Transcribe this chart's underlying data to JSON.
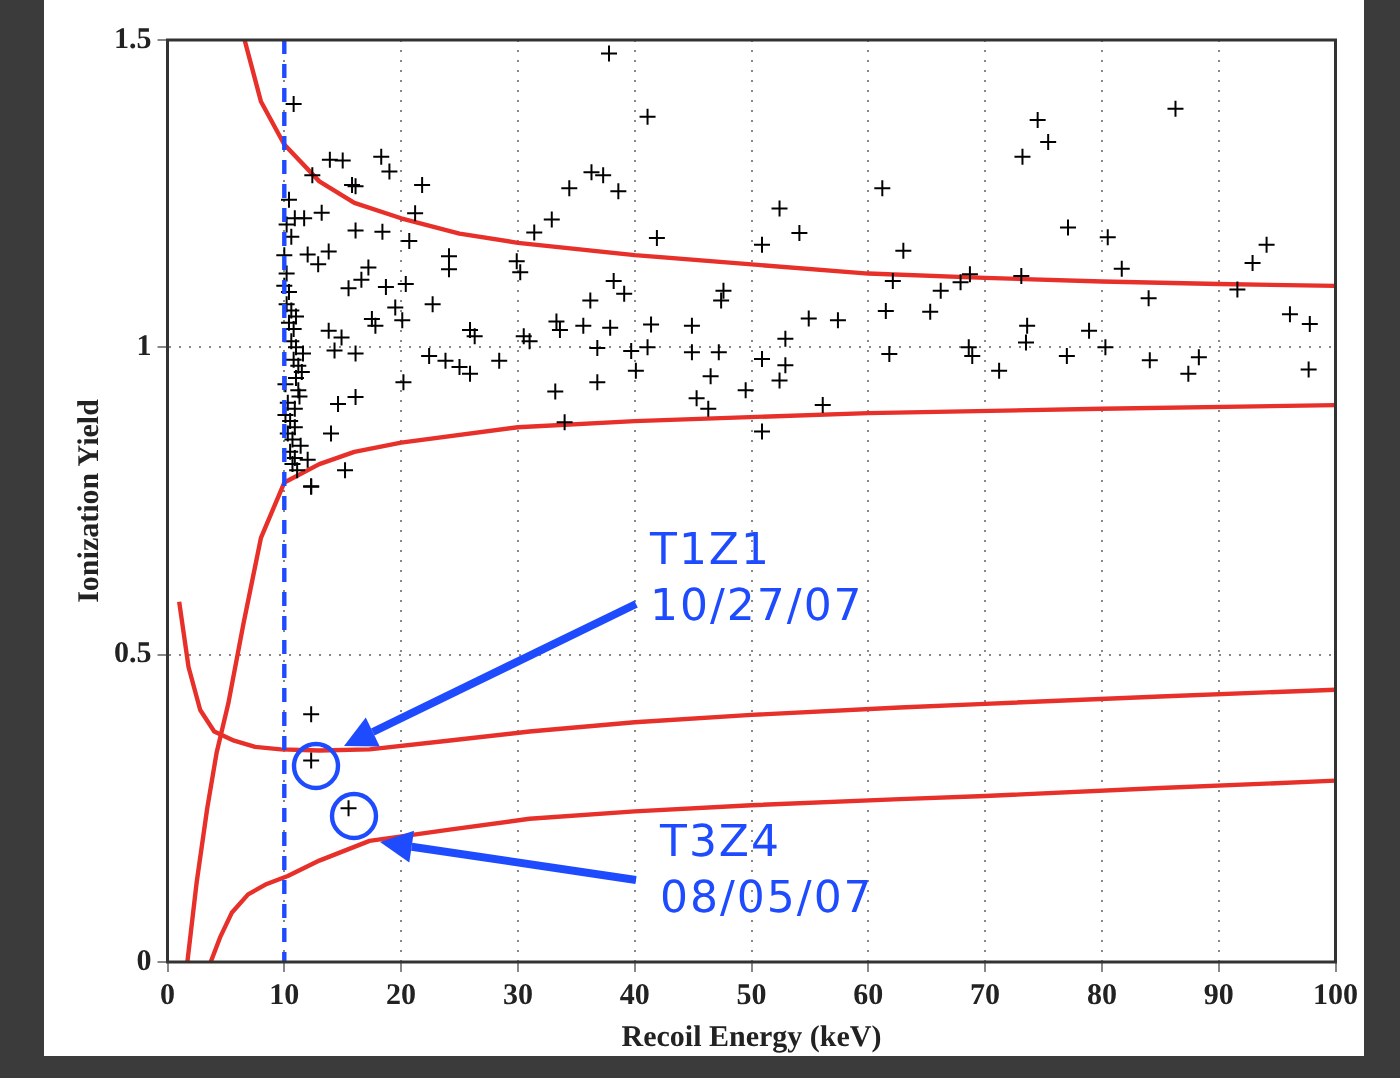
{
  "chart_data": {
    "type": "scatter",
    "xlabel": "Recoil Energy (keV)",
    "ylabel": "Ionization Yield",
    "xlim": [
      0,
      100
    ],
    "ylim": [
      0,
      1.5
    ],
    "xticks": [
      0,
      10,
      20,
      30,
      40,
      50,
      60,
      70,
      80,
      90,
      100
    ],
    "yticks": [
      0,
      0.5,
      1,
      1.5
    ],
    "grid": true,
    "legend": false,
    "ref_lines": [
      {
        "axis": "x",
        "value": 10,
        "color": "#1f4bff",
        "line_style": "dashed"
      }
    ],
    "annotations": [
      "T1Z1\n10/27/07",
      "T3Z4\n08/05/07"
    ],
    "series": [
      {
        "marker": "cross",
        "color": "#000000",
        "x": [
          37.8,
          10.8,
          41.1,
          13.9,
          15.0,
          18.3,
          19.0,
          12.4,
          15.8,
          16.1,
          21.8,
          34.4,
          36.3,
          37.3,
          38.6,
          21.2,
          13.2,
          32.9,
          31.4,
          10.9,
          11.7,
          16.1,
          18.4,
          20.7,
          41.9,
          50.9,
          24.1,
          24.1,
          29.9,
          30.2,
          17.2,
          16.6,
          15.5,
          12.0,
          13.8,
          12.9,
          18.7,
          20.4,
          38.2,
          39.1,
          36.2,
          47.6,
          47.4,
          22.7,
          19.5,
          20.1,
          33.3,
          33.6,
          35.6,
          37.9,
          41.4,
          44.9,
          25.9,
          26.3,
          17.8,
          17.5,
          30.5,
          31.0,
          13.8,
          14.9,
          14.3,
          16.1,
          22.4,
          23.8,
          25.0,
          25.9,
          28.4,
          36.8,
          39.7,
          40.1,
          41.1,
          44.9,
          47.2,
          50.9,
          46.5,
          36.8,
          33.2,
          20.2,
          16.1,
          14.6,
          45.3,
          46.3,
          49.5,
          34.0,
          50.9,
          14.0,
          15.2,
          12.3,
          12.0,
          74.5,
          75.4,
          73.2,
          86.3,
          61.2,
          52.4,
          54.1,
          63.0,
          62.1,
          61.5,
          77.1,
          80.5,
          81.7,
          84.0,
          94.1,
          92.9,
          91.6,
          66.2,
          65.3,
          67.9,
          68.7,
          73.1,
          96.1,
          97.8,
          97.7,
          54.9,
          57.4,
          52.9,
          52.9,
          52.4,
          61.8,
          68.6,
          68.9,
          71.2,
          73.6,
          73.5,
          77.0,
          78.9,
          80.3,
          84.1,
          87.4,
          88.3,
          56.1,
          12.3,
          12.3,
          15.5,
          12.3,
          10.0,
          10.2,
          10.4,
          10.6,
          10.8,
          11.0,
          11.2,
          10.1,
          10.3,
          10.5,
          10.7,
          10.9,
          11.1,
          11.4,
          10.0,
          10.2,
          10.4,
          10.6,
          10.8,
          11.0,
          11.3,
          10.1,
          10.3,
          10.5,
          10.7,
          10.9,
          11.2,
          11.6,
          10.2,
          10.6,
          11.0,
          11.5,
          10.4,
          10.9
        ],
        "values": [
          1.478,
          1.396,
          1.375,
          1.305,
          1.304,
          1.31,
          1.286,
          1.28,
          1.264,
          1.262,
          1.264,
          1.259,
          1.285,
          1.28,
          1.254,
          1.218,
          1.219,
          1.208,
          1.187,
          1.21,
          1.21,
          1.19,
          1.188,
          1.173,
          1.178,
          1.167,
          1.148,
          1.127,
          1.14,
          1.122,
          1.13,
          1.11,
          1.096,
          1.151,
          1.156,
          1.135,
          1.098,
          1.103,
          1.108,
          1.087,
          1.076,
          1.092,
          1.076,
          1.07,
          1.065,
          1.044,
          1.042,
          1.028,
          1.035,
          1.032,
          1.037,
          1.035,
          1.028,
          1.018,
          1.035,
          1.046,
          1.018,
          1.01,
          1.027,
          1.016,
          0.995,
          0.99,
          0.986,
          0.978,
          0.968,
          0.957,
          0.978,
          0.999,
          0.994,
          0.962,
          1.0,
          0.992,
          0.992,
          0.981,
          0.953,
          0.943,
          0.928,
          0.943,
          0.919,
          0.908,
          0.917,
          0.9,
          0.93,
          0.878,
          0.863,
          0.86,
          0.8,
          0.774,
          0.817,
          1.37,
          1.334,
          1.31,
          1.388,
          1.259,
          1.226,
          1.186,
          1.157,
          1.108,
          1.059,
          1.195,
          1.179,
          1.128,
          1.08,
          1.167,
          1.137,
          1.094,
          1.092,
          1.058,
          1.106,
          1.119,
          1.116,
          1.054,
          1.038,
          0.964,
          1.047,
          1.044,
          1.014,
          0.971,
          0.946,
          0.989,
          1.0,
          0.986,
          0.962,
          1.035,
          1.008,
          0.986,
          1.027,
          1.0,
          0.979,
          0.957,
          0.984,
          0.906,
          0.403,
          0.328,
          0.25,
          0.773,
          1.15,
          1.12,
          1.09,
          1.06,
          1.03,
          1.0,
          0.97,
          0.94,
          0.91,
          0.88,
          0.85,
          0.82,
          0.8,
          0.84,
          1.1,
          1.07,
          1.04,
          1.01,
          0.98,
          0.95,
          0.92,
          0.89,
          0.86,
          0.83,
          0.81,
          0.87,
          0.93,
          0.99,
          1.2,
          1.18,
          1.05,
          0.96,
          1.24,
          0.9
        ]
      },
      {
        "type": "line",
        "marker": "none",
        "color": "#e8302a",
        "x": [
          6.6,
          8,
          10,
          13,
          16,
          20,
          25,
          30,
          40,
          50,
          60,
          70,
          80,
          90,
          100
        ],
        "values": [
          1.5,
          1.4,
          1.33,
          1.27,
          1.235,
          1.21,
          1.185,
          1.17,
          1.15,
          1.135,
          1.12,
          1.113,
          1.107,
          1.103,
          1.1
        ]
      },
      {
        "type": "line",
        "marker": "none",
        "color": "#e8302a",
        "x": [
          1.7,
          2.5,
          3.4,
          4.2,
          5.2,
          6.5,
          8,
          10,
          13,
          16,
          20,
          30,
          40,
          60,
          80,
          100
        ],
        "values": [
          0,
          0.13,
          0.25,
          0.34,
          0.42,
          0.55,
          0.69,
          0.78,
          0.81,
          0.83,
          0.845,
          0.87,
          0.88,
          0.893,
          0.9,
          0.906
        ]
      },
      {
        "type": "line",
        "marker": "none",
        "color": "#e8302a",
        "x": [
          1.0,
          1.8,
          2.8,
          4,
          5.7,
          7.5,
          9.7,
          13,
          17.3,
          24,
          31,
          40,
          50,
          62.7,
          70,
          85,
          100
        ],
        "values": [
          0.586,
          0.48,
          0.41,
          0.375,
          0.36,
          0.35,
          0.346,
          0.344,
          0.346,
          0.36,
          0.375,
          0.39,
          0.402,
          0.414,
          0.42,
          0.432,
          0.443
        ]
      },
      {
        "type": "line",
        "marker": "none",
        "color": "#e8302a",
        "x": [
          3.7,
          4.5,
          5.5,
          6.9,
          8.5,
          10.3,
          13,
          17.3,
          24,
          31,
          40,
          50,
          62.7,
          70,
          85,
          100
        ],
        "values": [
          0,
          0.04,
          0.08,
          0.11,
          0.127,
          0.14,
          0.165,
          0.197,
          0.215,
          0.233,
          0.245,
          0.255,
          0.265,
          0.27,
          0.283,
          0.295
        ]
      }
    ]
  }
}
